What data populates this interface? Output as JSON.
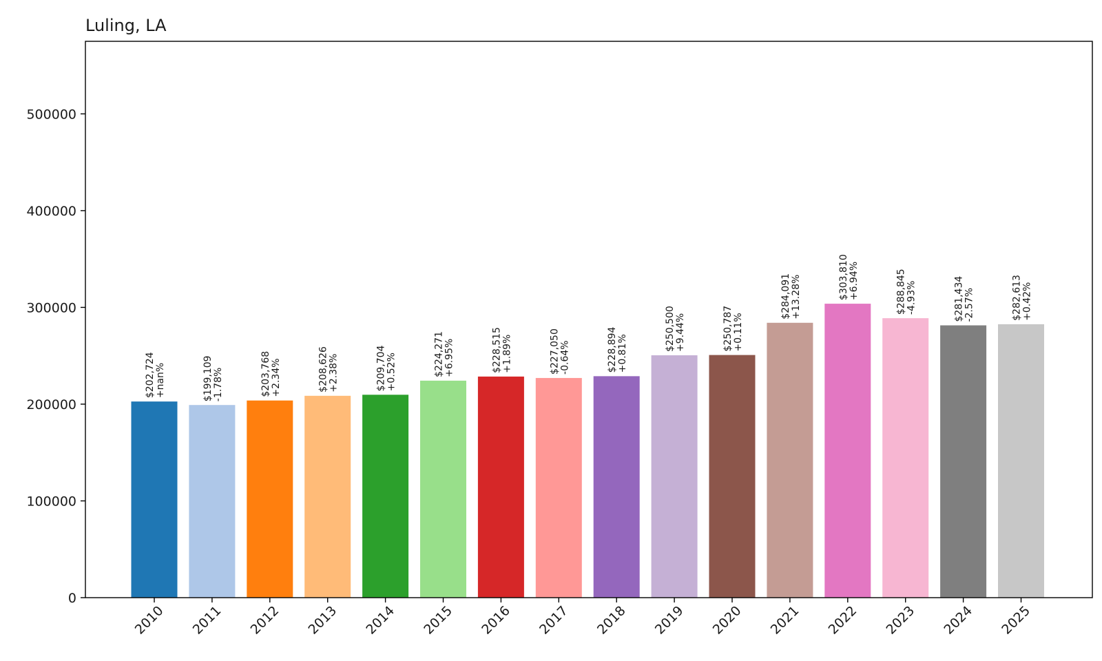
{
  "chart_data": {
    "type": "bar",
    "title": "Luling, LA",
    "xlabel": "",
    "ylabel": "",
    "ylim": [
      0,
      575000
    ],
    "yticks": [
      0,
      100000,
      200000,
      300000,
      400000,
      500000
    ],
    "grid": false,
    "categories": [
      "2010",
      "2011",
      "2012",
      "2013",
      "2014",
      "2015",
      "2016",
      "2017",
      "2018",
      "2019",
      "2020",
      "2021",
      "2022",
      "2023",
      "2024",
      "2025"
    ],
    "values": [
      202724,
      199109,
      203768,
      208626,
      209704,
      224271,
      228515,
      227050,
      228894,
      250500,
      250787,
      284091,
      303810,
      288845,
      281434,
      282613
    ],
    "value_labels": [
      "$202,724",
      "$199,109",
      "$203,768",
      "$208,626",
      "$209,704",
      "$224,271",
      "$228,515",
      "$227,050",
      "$228,894",
      "$250,500",
      "$250,787",
      "$284,091",
      "$303,810",
      "$288,845",
      "$281,434",
      "$282,613"
    ],
    "change_labels": [
      "+nan%",
      "-1.78%",
      "+2.34%",
      "+2.38%",
      "+0.52%",
      "+6.95%",
      "+1.89%",
      "-0.64%",
      "+0.81%",
      "+9.44%",
      "+0.11%",
      "+13.28%",
      "+6.94%",
      "-4.93%",
      "-2.57%",
      "+0.42%"
    ],
    "colors": [
      "#1f77b4",
      "#aec7e8",
      "#ff7f0e",
      "#ffbb78",
      "#2ca02c",
      "#98df8a",
      "#d62728",
      "#ff9896",
      "#9467bd",
      "#c5b0d5",
      "#8c564b",
      "#c49c94",
      "#e377c2",
      "#f7b6d2",
      "#7f7f7f",
      "#c7c7c7"
    ]
  }
}
